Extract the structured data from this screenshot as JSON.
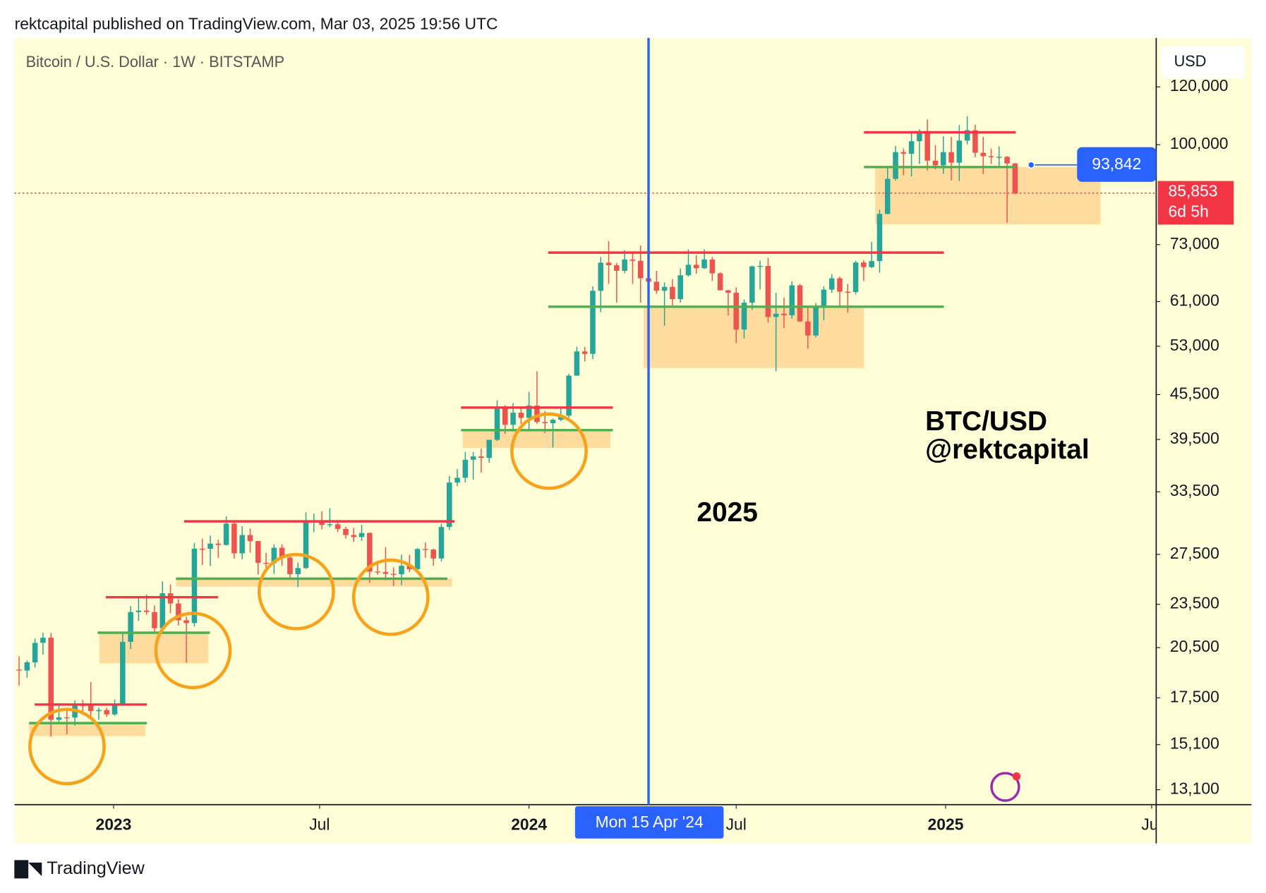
{
  "header": {
    "text": "rektcapital published on TradingView.com, Mar 03, 2025 19:56 UTC"
  },
  "footer": {
    "brand": "TradingView"
  },
  "chart_data": {
    "type": "candlestick",
    "title": "Bitcoin / U.S. Dollar · 1W · BITSTAMP",
    "currency": "USD",
    "log_scale": true,
    "grid": false,
    "up_color": "#26a69a",
    "down_color": "#ef5350",
    "ylim": [
      12500,
      140000
    ],
    "yticks": [
      {
        "value": 120000,
        "label": "120,000"
      },
      {
        "value": 100000,
        "label": "100,000"
      },
      {
        "value": 73000,
        "label": "73,000"
      },
      {
        "value": 61000,
        "label": "61,000"
      },
      {
        "value": 53000,
        "label": "53,000"
      },
      {
        "value": 45500,
        "label": "45,500"
      },
      {
        "value": 39500,
        "label": "39,500"
      },
      {
        "value": 33500,
        "label": "33,500"
      },
      {
        "value": 27500,
        "label": "27,500"
      },
      {
        "value": 23500,
        "label": "23,500"
      },
      {
        "value": 20500,
        "label": "20,500"
      },
      {
        "value": 17500,
        "label": "17,500"
      },
      {
        "value": 15100,
        "label": "15,100"
      },
      {
        "value": 13100,
        "label": "13,100"
      }
    ],
    "xlim": [
      "2022-10-06",
      "2025-07-05"
    ],
    "xticks": [
      {
        "value": "2023-01-01",
        "label": "2023"
      },
      {
        "value": "2023-07-01",
        "label": "Jul"
      },
      {
        "value": "2024-01-01",
        "label": "2024"
      },
      {
        "value": "2024-07-01",
        "label": "Jul"
      },
      {
        "value": "2025-01-01",
        "label": "2025"
      },
      {
        "value": "2025-07-01",
        "label": "Jul"
      }
    ],
    "crosshair": {
      "x": "2024-04-15",
      "label": "Mon 15 Apr '24",
      "color": "#2962ff"
    },
    "markers": [
      {
        "value": 93842,
        "label": "93,842",
        "color": "#2962ff"
      },
      {
        "value": 85853,
        "label": "85,853",
        "sublabel": "6d 5h",
        "color": "#f23645"
      }
    ],
    "watermark": [
      "BTC/USD",
      "@rektcapital"
    ],
    "annotation": "2025",
    "x": [
      "2022-10-10",
      "2022-10-17",
      "2022-10-24",
      "2022-10-31",
      "2022-11-07",
      "2022-11-14",
      "2022-11-21",
      "2022-11-28",
      "2022-12-05",
      "2022-12-12",
      "2022-12-19",
      "2022-12-26",
      "2023-01-02",
      "2023-01-09",
      "2023-01-16",
      "2023-01-23",
      "2023-01-30",
      "2023-02-06",
      "2023-02-13",
      "2023-02-20",
      "2023-02-27",
      "2023-03-06",
      "2023-03-13",
      "2023-03-20",
      "2023-03-27",
      "2023-04-03",
      "2023-04-10",
      "2023-04-17",
      "2023-04-24",
      "2023-05-01",
      "2023-05-08",
      "2023-05-15",
      "2023-05-22",
      "2023-05-29",
      "2023-06-05",
      "2023-06-12",
      "2023-06-19",
      "2023-06-26",
      "2023-07-03",
      "2023-07-10",
      "2023-07-17",
      "2023-07-24",
      "2023-07-31",
      "2023-08-07",
      "2023-08-14",
      "2023-08-21",
      "2023-08-28",
      "2023-09-04",
      "2023-09-11",
      "2023-09-18",
      "2023-09-25",
      "2023-10-02",
      "2023-10-09",
      "2023-10-16",
      "2023-10-23",
      "2023-10-30",
      "2023-11-06",
      "2023-11-13",
      "2023-11-20",
      "2023-11-27",
      "2023-12-04",
      "2023-12-11",
      "2023-12-18",
      "2023-12-25",
      "2024-01-01",
      "2024-01-08",
      "2024-01-15",
      "2024-01-22",
      "2024-01-29",
      "2024-02-05",
      "2024-02-12",
      "2024-02-19",
      "2024-02-26",
      "2024-03-04",
      "2024-03-11",
      "2024-03-18",
      "2024-03-25",
      "2024-04-01",
      "2024-04-08",
      "2024-04-15",
      "2024-04-22",
      "2024-04-29",
      "2024-05-06",
      "2024-05-13",
      "2024-05-20",
      "2024-05-27",
      "2024-06-03",
      "2024-06-10",
      "2024-06-17",
      "2024-06-24",
      "2024-07-01",
      "2024-07-08",
      "2024-07-15",
      "2024-07-22",
      "2024-07-29",
      "2024-08-05",
      "2024-08-12",
      "2024-08-19",
      "2024-08-26",
      "2024-09-02",
      "2024-09-09",
      "2024-09-16",
      "2024-09-23",
      "2024-09-30",
      "2024-10-07",
      "2024-10-14",
      "2024-10-21",
      "2024-10-28",
      "2024-11-04",
      "2024-11-11",
      "2024-11-18",
      "2024-11-25",
      "2024-12-02",
      "2024-12-09",
      "2024-12-16",
      "2024-12-23",
      "2024-12-30",
      "2025-01-06",
      "2025-01-13",
      "2025-01-20",
      "2025-01-27",
      "2025-02-03",
      "2025-02-10",
      "2025-02-17",
      "2025-02-24",
      "2025-03-03"
    ],
    "candles": [
      [
        19130,
        19950,
        18190,
        19070
      ],
      [
        19070,
        19690,
        18650,
        19570
      ],
      [
        19570,
        21080,
        19250,
        20810
      ],
      [
        20810,
        21480,
        20050,
        21150
      ],
      [
        21150,
        21470,
        15480,
        16330
      ],
      [
        16330,
        17190,
        16230,
        16460
      ],
      [
        16460,
        16810,
        15600,
        16450
      ],
      [
        16450,
        17370,
        16030,
        17110
      ],
      [
        17110,
        17390,
        16750,
        17100
      ],
      [
        17100,
        18390,
        16530,
        16780
      ],
      [
        16780,
        16970,
        16330,
        16840
      ],
      [
        16840,
        16960,
        16480,
        16610
      ],
      [
        16610,
        17410,
        16540,
        17130
      ],
      [
        17130,
        21480,
        17100,
        20880
      ],
      [
        20880,
        23370,
        20400,
        22930
      ],
      [
        22930,
        23960,
        22300,
        23040
      ],
      [
        23040,
        24240,
        22740,
        22930
      ],
      [
        22930,
        23420,
        21460,
        21790
      ],
      [
        21790,
        25250,
        21400,
        24330
      ],
      [
        24330,
        25020,
        22850,
        23560
      ],
      [
        23560,
        23880,
        21980,
        22350
      ],
      [
        22350,
        22600,
        19550,
        22150
      ],
      [
        22150,
        28500,
        21900,
        28000
      ],
      [
        28000,
        28900,
        26600,
        27990
      ],
      [
        27990,
        29180,
        26520,
        28450
      ],
      [
        28450,
        28800,
        27200,
        28330
      ],
      [
        28330,
        31000,
        28280,
        30300
      ],
      [
        30300,
        30400,
        27130,
        27590
      ],
      [
        27590,
        30050,
        27080,
        29230
      ],
      [
        29230,
        29840,
        27660,
        28680
      ],
      [
        28680,
        28700,
        25800,
        26780
      ],
      [
        26780,
        27650,
        26360,
        26750
      ],
      [
        26750,
        28400,
        25860,
        28080
      ],
      [
        28080,
        28400,
        26520,
        27230
      ],
      [
        27230,
        27400,
        25380,
        25840
      ],
      [
        25840,
        26800,
        24800,
        26340
      ],
      [
        26340,
        31400,
        26270,
        30540
      ],
      [
        30540,
        31270,
        29500,
        30590
      ],
      [
        30590,
        31500,
        29760,
        30170
      ],
      [
        30170,
        31800,
        29950,
        30240
      ],
      [
        30240,
        30400,
        29500,
        29800
      ],
      [
        29800,
        29990,
        28900,
        29230
      ],
      [
        29230,
        29900,
        28600,
        29050
      ],
      [
        29050,
        30200,
        28700,
        29420
      ],
      [
        29420,
        29480,
        25150,
        26050
      ],
      [
        26050,
        26800,
        25800,
        26010
      ],
      [
        26010,
        28150,
        25350,
        25870
      ],
      [
        25870,
        26400,
        24900,
        25830
      ],
      [
        25830,
        27480,
        24950,
        26530
      ],
      [
        26530,
        27460,
        26000,
        26250
      ],
      [
        26250,
        28060,
        26000,
        27970
      ],
      [
        27970,
        28550,
        27200,
        27920
      ],
      [
        27920,
        28000,
        26540,
        27150
      ],
      [
        27150,
        30300,
        26900,
        29980
      ],
      [
        29980,
        35200,
        29700,
        34490
      ],
      [
        34490,
        35980,
        34100,
        35010
      ],
      [
        35010,
        37980,
        34500,
        37060
      ],
      [
        37060,
        37980,
        34800,
        37450
      ],
      [
        37450,
        38400,
        35600,
        37280
      ],
      [
        37280,
        39000,
        36700,
        39460
      ],
      [
        39460,
        44700,
        39300,
        43800
      ],
      [
        43800,
        44000,
        40200,
        41370
      ],
      [
        41370,
        44300,
        40500,
        42980
      ],
      [
        42980,
        43800,
        41500,
        42280
      ],
      [
        42280,
        45900,
        40750,
        43950
      ],
      [
        43950,
        48970,
        41500,
        41730
      ],
      [
        41730,
        43200,
        40300,
        41580
      ],
      [
        41580,
        42200,
        38500,
        42030
      ],
      [
        42030,
        43800,
        41850,
        42580
      ],
      [
        42580,
        48600,
        42300,
        48300
      ],
      [
        48300,
        52900,
        48300,
        52130
      ],
      [
        52130,
        52900,
        50500,
        51730
      ],
      [
        51730,
        64000,
        50900,
        63110
      ],
      [
        63110,
        70200,
        59000,
        68960
      ],
      [
        68960,
        73800,
        64500,
        68390
      ],
      [
        68390,
        68900,
        60800,
        67210
      ],
      [
        67210,
        71700,
        66700,
        69650
      ],
      [
        69650,
        71300,
        64500,
        69360
      ],
      [
        69360,
        72800,
        60800,
        65660
      ],
      [
        65660,
        67200,
        59700,
        64940
      ],
      [
        64940,
        67200,
        62500,
        63120
      ],
      [
        63120,
        64800,
        56500,
        63890
      ],
      [
        63890,
        65500,
        60200,
        61480
      ],
      [
        61480,
        67700,
        60800,
        66270
      ],
      [
        66270,
        71900,
        66000,
        68500
      ],
      [
        68500,
        70600,
        66600,
        67760
      ],
      [
        67760,
        71950,
        67600,
        69650
      ],
      [
        69650,
        70200,
        65100,
        66680
      ],
      [
        66680,
        66900,
        63200,
        63210
      ],
      [
        63210,
        63300,
        58400,
        62730
      ],
      [
        62730,
        63800,
        53500,
        55850
      ],
      [
        55850,
        61400,
        54300,
        60790
      ],
      [
        60790,
        68300,
        59400,
        68160
      ],
      [
        68160,
        69400,
        63400,
        68250
      ],
      [
        68250,
        70000,
        57100,
        58120
      ],
      [
        58120,
        62700,
        49000,
        58710
      ],
      [
        58710,
        61800,
        56100,
        58430
      ],
      [
        58430,
        65000,
        57800,
        64200
      ],
      [
        64200,
        64500,
        57200,
        57300
      ],
      [
        57300,
        59800,
        52600,
        54820
      ],
      [
        54820,
        60700,
        54500,
        59990
      ],
      [
        59990,
        64000,
        57500,
        63340
      ],
      [
        63340,
        66500,
        62700,
        65640
      ],
      [
        65640,
        66000,
        59800,
        62930
      ],
      [
        62930,
        64500,
        58900,
        62850
      ],
      [
        62850,
        69400,
        62400,
        69000
      ],
      [
        69000,
        69500,
        65100,
        68000
      ],
      [
        68000,
        73600,
        67800,
        69300
      ],
      [
        69300,
        81500,
        66800,
        80400
      ],
      [
        80400,
        93500,
        80300,
        89800
      ],
      [
        89800,
        99600,
        89300,
        97700
      ],
      [
        97700,
        98800,
        90800,
        97200
      ],
      [
        97200,
        104000,
        90500,
        101100
      ],
      [
        101100,
        105000,
        94100,
        104400
      ],
      [
        104400,
        108300,
        92200,
        95100
      ],
      [
        95100,
        99900,
        92500,
        93700
      ],
      [
        93700,
        102700,
        91200,
        97700
      ],
      [
        97700,
        102500,
        89300,
        94500
      ],
      [
        94500,
        106400,
        89200,
        101300
      ],
      [
        101300,
        109400,
        100100,
        104700
      ],
      [
        104700,
        106500,
        96150,
        97500
      ],
      [
        97500,
        102500,
        91200,
        96450
      ],
      [
        96450,
        98800,
        94100,
        96150
      ],
      [
        96150,
        99500,
        93400,
        96250
      ],
      [
        96250,
        96500,
        78200,
        94270
      ],
      [
        94270,
        94400,
        85500,
        85853
      ]
    ]
  }
}
